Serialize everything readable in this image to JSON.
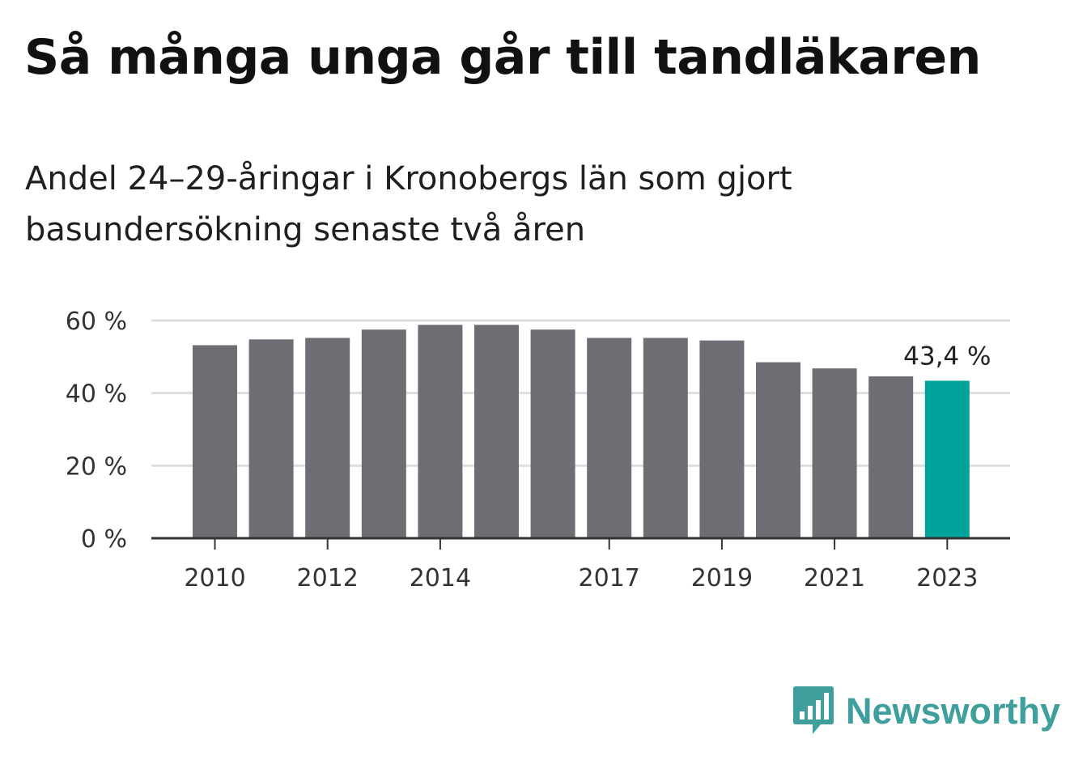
{
  "header": {
    "title": "Så många unga går till tandläkaren",
    "subtitle": "Andel 24–29-åringar i Kronobergs län som gjort basundersökning senaste två åren"
  },
  "chart_data": {
    "type": "bar",
    "categories": [
      "2010",
      "2011",
      "2012",
      "2013",
      "2014",
      "2015",
      "2016",
      "2017",
      "2018",
      "2019",
      "2020",
      "2021",
      "2022",
      "2023"
    ],
    "values": [
      53.2,
      54.8,
      55.2,
      57.5,
      58.8,
      58.8,
      57.5,
      55.2,
      55.2,
      54.5,
      48.5,
      46.8,
      44.6,
      43.4
    ],
    "x_tick_labels": [
      {
        "category": "2010",
        "label": "2010"
      },
      {
        "category": "2012",
        "label": "2012"
      },
      {
        "category": "2014",
        "label": "2014"
      },
      {
        "category": "2017",
        "label": "2017"
      },
      {
        "category": "2019",
        "label": "2019"
      },
      {
        "category": "2021",
        "label": "2021"
      },
      {
        "category": "2023",
        "label": "2023"
      }
    ],
    "y_ticks": [
      {
        "value": 0,
        "label": "0 %"
      },
      {
        "value": 20,
        "label": "20 %"
      },
      {
        "value": 40,
        "label": "40 %"
      },
      {
        "value": 60,
        "label": "60 %"
      }
    ],
    "ylim": [
      0,
      60
    ],
    "annotations": [
      {
        "category": "2023",
        "text": "43,4 %"
      }
    ],
    "grid": true,
    "colors": {
      "bar": "#6e6d73",
      "highlight": "#00a39a",
      "grid": "#dedede",
      "axis": "#333333"
    },
    "highlight_category": "2023"
  },
  "brand": {
    "name": "Newsworthy",
    "logo_icon": "bar-chart-speech-bubble-icon",
    "color": "#3e9f9c"
  }
}
